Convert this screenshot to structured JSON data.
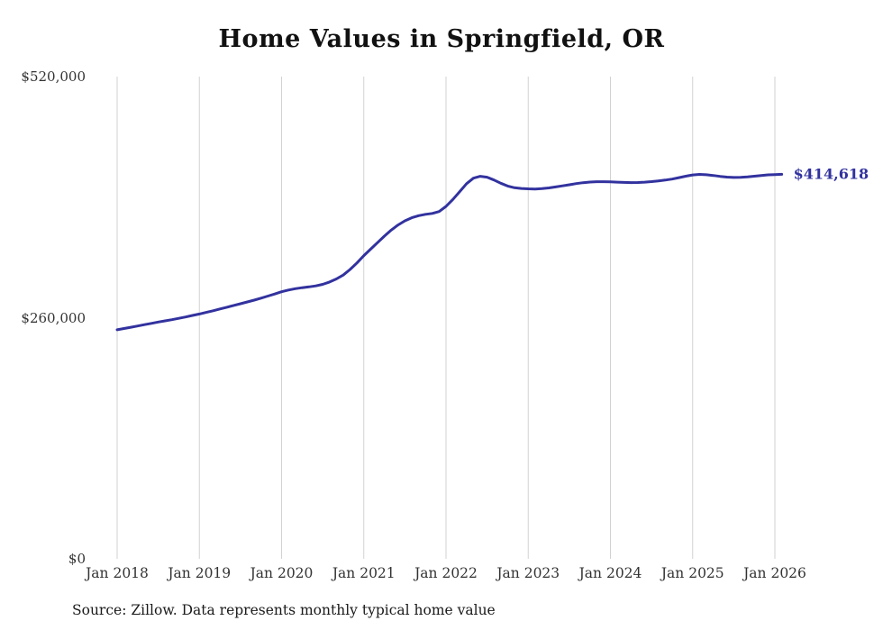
{
  "chart": {
    "title": "Home Values in Springfield, OR",
    "source": "Source: Zillow. Data represents monthly typical home value",
    "end_label": "$414,618",
    "line_color": "#32329f",
    "grid_color": "#d2d2d2"
  },
  "chart_data": {
    "type": "line",
    "title": "Home Values in Springfield, OR",
    "xlabel": "",
    "ylabel": "",
    "ylim": [
      0,
      520000
    ],
    "grid": "vertical-only",
    "legend": "none",
    "x_start": "Jan 2018",
    "x_interval": "monthly",
    "x_tick_labels": [
      "Jan 2018",
      "Jan 2019",
      "Jan 2020",
      "Jan 2021",
      "Jan 2022",
      "Jan 2023",
      "Jan 2024",
      "Jan 2025",
      "Jan 2026"
    ],
    "y_tick_labels": [
      "$0",
      "$260,000",
      "$520,000"
    ],
    "y_tick_values": [
      0,
      260000,
      520000
    ],
    "end_annotation": "$414,618",
    "source": "Source: Zillow. Data represents monthly typical home value",
    "series": [
      {
        "name": "Typical home value",
        "values": [
          247000,
          248300,
          249700,
          251100,
          252500,
          253900,
          255300,
          256600,
          257900,
          259300,
          260800,
          262400,
          264000,
          265700,
          267500,
          269400,
          271300,
          273200,
          275100,
          277000,
          279000,
          281100,
          283300,
          285600,
          288000,
          289800,
          291300,
          292400,
          293200,
          294300,
          296000,
          298500,
          301800,
          306000,
          312000,
          319000,
          327000,
          334000,
          341000,
          348000,
          354500,
          360000,
          364500,
          367800,
          370000,
          371500,
          372500,
          374500,
          380000,
          387500,
          396000,
          404500,
          410500,
          412500,
          411500,
          408500,
          405000,
          402000,
          400200,
          399400,
          399000,
          398800,
          399200,
          400000,
          401000,
          402200,
          403400,
          404600,
          405600,
          406300,
          406700,
          406700,
          406500,
          406200,
          405900,
          405700,
          405800,
          406200,
          406800,
          407500,
          408400,
          409500,
          411000,
          412600,
          414000,
          414500,
          414200,
          413400,
          412400,
          411600,
          411200,
          411300,
          411800,
          412600,
          413400,
          414100,
          414300,
          414618
        ]
      }
    ]
  }
}
